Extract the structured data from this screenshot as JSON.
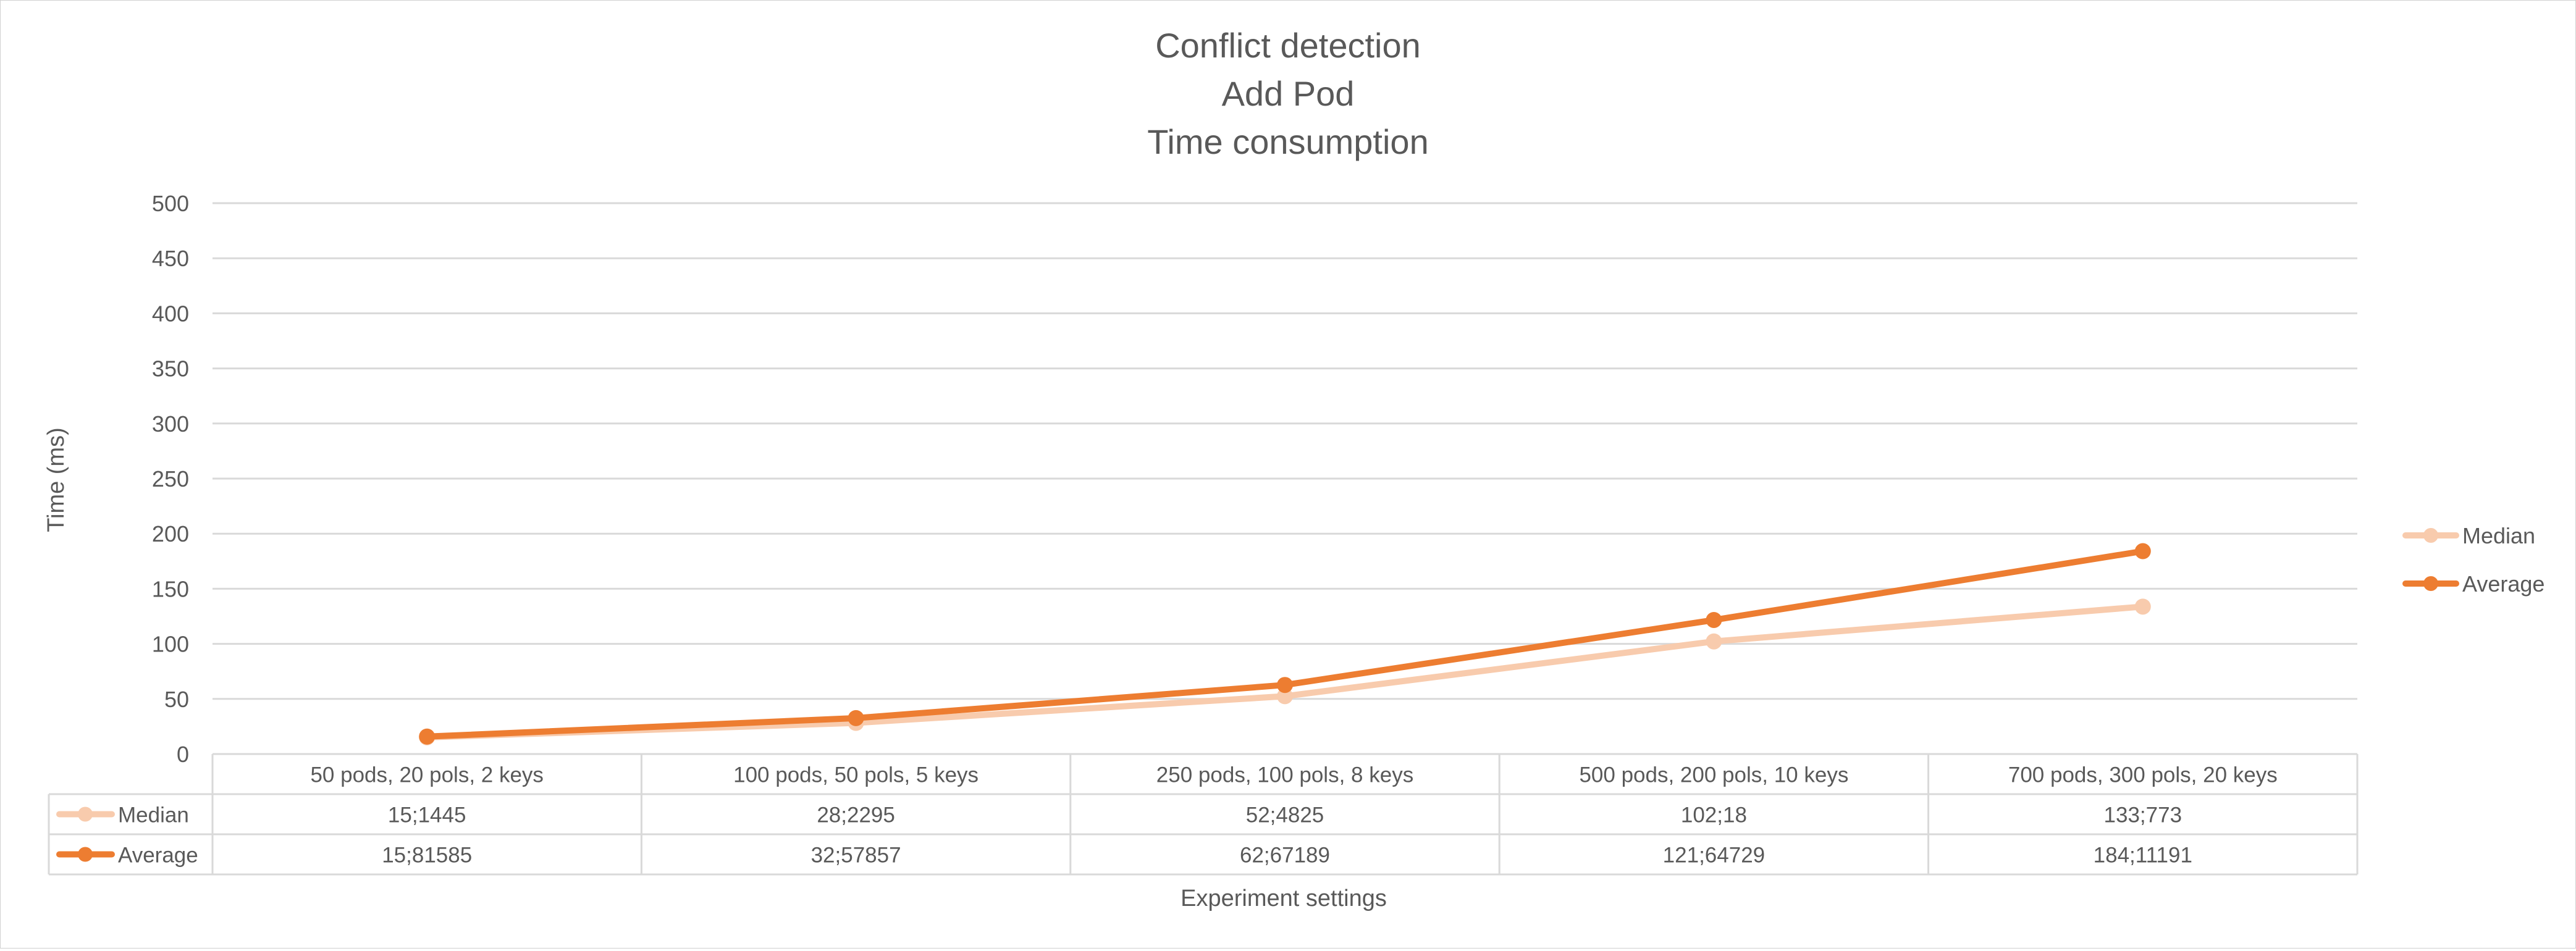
{
  "chart_data": {
    "type": "line",
    "title": [
      "Conflict detection",
      "Add Pod",
      "Time consumption"
    ],
    "xlabel": "Experiment settings",
    "ylabel": "Time (ms)",
    "ylim": [
      0,
      500
    ],
    "yticks": [
      0,
      50,
      100,
      150,
      200,
      250,
      300,
      350,
      400,
      450,
      500
    ],
    "grid": true,
    "legend_position": "right",
    "categories": [
      "50 pods, 20 pols, 2 keys",
      "100 pods, 50 pols, 5 keys",
      "250 pods, 100 pols, 8 keys",
      "500 pods, 200 pols, 10 keys",
      "700 pods, 300 pols, 20 keys"
    ],
    "series": [
      {
        "name": "Median",
        "color": "#F8CBAD",
        "values": [
          15.1445,
          28.2295,
          52.4825,
          102.18,
          133.773
        ],
        "table_labels": [
          "15;1445",
          "28;2295",
          "52;4825",
          "102;18",
          "133;773"
        ]
      },
      {
        "name": "Average",
        "color": "#ED7D31",
        "values": [
          15.81585,
          32.57857,
          62.67189,
          121.64729,
          184.11191
        ],
        "table_labels": [
          "15;81585",
          "32;57857",
          "62;67189",
          "121;64729",
          "184;11191"
        ]
      }
    ]
  }
}
